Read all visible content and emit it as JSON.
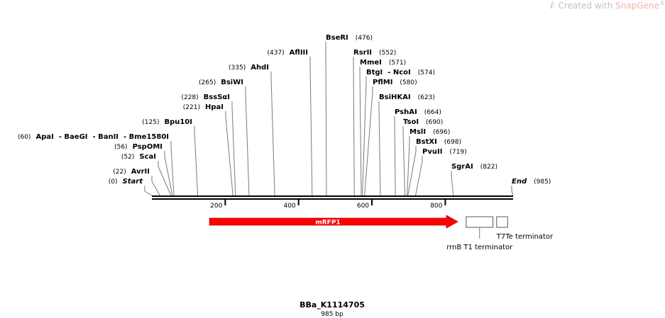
{
  "watermark": {
    "prefix": "Created with ",
    "brand": "SnapGene",
    "mark": "®"
  },
  "plasmid": {
    "name": "BBa_K1114705",
    "length_label": "985 bp",
    "length": 985
  },
  "sites": [
    {
      "name": "Start",
      "pos": 0,
      "label": "(0)",
      "italic": true
    },
    {
      "name": "AvrII",
      "pos": 22,
      "label": "(22)"
    },
    {
      "name": "ScaI",
      "pos": 52,
      "label": "(52)"
    },
    {
      "name": "PspOMI",
      "pos": 56,
      "label": "(56)"
    },
    {
      "name": "ApaI  - BaeGI  - BanII  - Bme1580I",
      "pos": 60,
      "label": "(60)"
    },
    {
      "name": "Bpu10I",
      "pos": 125,
      "label": "(125)"
    },
    {
      "name": "HpaI",
      "pos": 221,
      "label": "(221)"
    },
    {
      "name": "BssSαI",
      "pos": 228,
      "label": "(228)"
    },
    {
      "name": "BsiWI",
      "pos": 265,
      "label": "(265)"
    },
    {
      "name": "AhdI",
      "pos": 335,
      "label": "(335)"
    },
    {
      "name": "AflIII",
      "pos": 437,
      "label": "(437)"
    },
    {
      "name": "BseRI",
      "pos": 476,
      "label": "(476)"
    },
    {
      "name": "RsrII",
      "pos": 552,
      "label": "(552)"
    },
    {
      "name": "MmeI",
      "pos": 571,
      "label": "(571)"
    },
    {
      "name": "BtgI  - NcoI",
      "pos": 574,
      "label": "(574)"
    },
    {
      "name": "PflMI",
      "pos": 580,
      "label": "(580)"
    },
    {
      "name": "BsiHKAI",
      "pos": 623,
      "label": "(623)"
    },
    {
      "name": "PshAI",
      "pos": 664,
      "label": "(664)"
    },
    {
      "name": "TsoI",
      "pos": 690,
      "label": "(690)"
    },
    {
      "name": "MslI",
      "pos": 696,
      "label": "(696)"
    },
    {
      "name": "BstXI",
      "pos": 698,
      "label": "(698)"
    },
    {
      "name": "PvuII",
      "pos": 719,
      "label": "(719)"
    },
    {
      "name": "SgrAI",
      "pos": 822,
      "label": "(822)"
    },
    {
      "name": "End",
      "pos": 985,
      "label": "(985)",
      "italic": true
    }
  ],
  "ruler": {
    "ticks": [
      {
        "value": 200,
        "label": "200"
      },
      {
        "value": 400,
        "label": "400"
      },
      {
        "value": 600,
        "label": "600"
      },
      {
        "value": 800,
        "label": "800"
      }
    ]
  },
  "features": [
    {
      "name": "mRFP1",
      "type": "cds",
      "start": 157,
      "end": 834,
      "color": "#ff0000",
      "label": "mRFP1"
    },
    {
      "name": "rrnB T1 terminator",
      "type": "terminator",
      "start": 857,
      "end": 930,
      "label": "rrnB T1 terminator"
    },
    {
      "name": "T7Te terminator",
      "type": "terminator",
      "start": 940,
      "end": 970,
      "label": "T7Te terminator"
    }
  ]
}
